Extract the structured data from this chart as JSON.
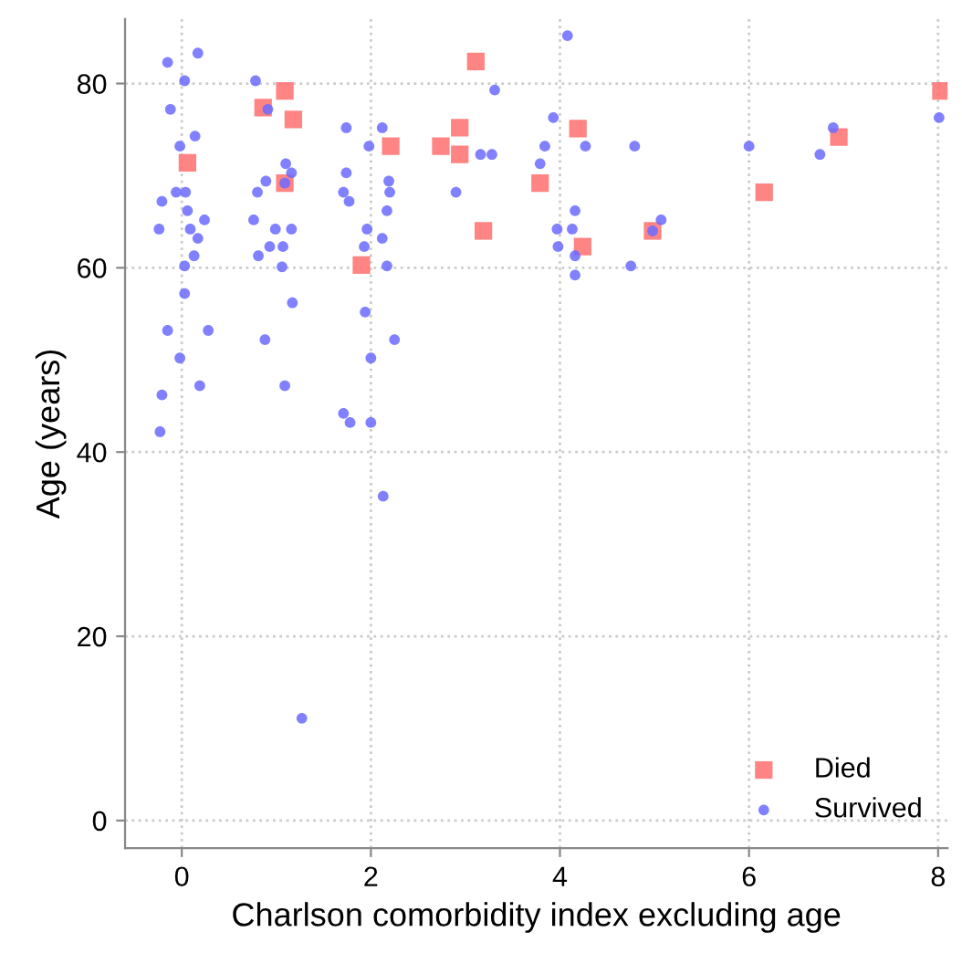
{
  "chart_data": {
    "type": "scatter",
    "xlabel": "Charlson comorbidity index excluding age",
    "ylabel": "Age (years)",
    "xlim": [
      -0.6,
      8.1
    ],
    "ylim": [
      -3,
      87
    ],
    "xticks": [
      0,
      2,
      4,
      6,
      8
    ],
    "yticks": [
      0,
      20,
      40,
      60,
      80
    ],
    "grid": true,
    "legend": "bottom right",
    "series": [
      {
        "name": "Survived",
        "color": "#6b6bff",
        "marker": "circle",
        "x": [
          -0.15,
          0.17,
          0.03,
          0.78,
          0.91,
          3.31,
          -0.12,
          0.14,
          -0.02,
          1.74,
          2.12,
          1.98,
          3.16,
          3.28,
          1.1,
          1.16,
          0.89,
          0.8,
          1.74,
          1.71,
          1.77,
          2.19,
          2.2,
          2.17,
          2.9,
          -0.06,
          0.04,
          -0.21,
          0.06,
          0.24,
          0.76,
          -0.24,
          0.09,
          0.17,
          0.99,
          1.16,
          1.96,
          2.12,
          0.93,
          1.07,
          0.81,
          1.06,
          1.93,
          0.13,
          0.03,
          2.17,
          0.03,
          1.17,
          1.94,
          -0.15,
          0.28,
          0.88,
          2.25,
          -0.02,
          2.0,
          0.19,
          1.09,
          -0.21,
          1.71,
          1.78,
          2.0,
          -0.23,
          2.13,
          1.27,
          4.08,
          3.93,
          3.84,
          4.27,
          4.79,
          6.0,
          3.79,
          4.16,
          3.97,
          4.13,
          3.98,
          4.16,
          4.16,
          4.75,
          5.07,
          4.98,
          6.89,
          6.75,
          8.01,
          1.09
        ],
        "values": [
          82.3,
          83.3,
          80.3,
          80.3,
          77.2,
          79.3,
          77.2,
          74.3,
          73.2,
          75.2,
          75.2,
          73.2,
          72.3,
          72.3,
          71.3,
          70.3,
          69.4,
          68.2,
          70.3,
          68.2,
          67.2,
          69.4,
          68.2,
          66.2,
          68.2,
          68.2,
          68.2,
          67.2,
          66.2,
          65.2,
          65.2,
          64.2,
          64.2,
          63.2,
          64.2,
          64.2,
          64.2,
          63.2,
          62.3,
          62.3,
          61.3,
          60.1,
          62.3,
          61.3,
          60.2,
          60.2,
          57.2,
          56.2,
          55.2,
          53.2,
          53.2,
          52.2,
          52.2,
          50.2,
          50.2,
          47.2,
          47.2,
          46.2,
          44.2,
          43.2,
          43.2,
          42.2,
          35.2,
          11.1,
          85.2,
          76.3,
          73.2,
          73.2,
          73.2,
          73.2,
          71.3,
          66.2,
          64.2,
          64.2,
          62.3,
          61.3,
          59.2,
          60.2,
          65.2,
          64.0,
          75.2,
          72.3,
          76.3,
          69.2
        ]
      },
      {
        "name": "Died",
        "color": "#ff6f6f",
        "marker": "square",
        "x": [
          1.09,
          0.86,
          1.18,
          0.06,
          1.09,
          2.94,
          2.21,
          2.74,
          2.94,
          3.19,
          1.9,
          3.11,
          4.19,
          3.79,
          4.24,
          4.98,
          6.16,
          6.95,
          8.03
        ],
        "values": [
          79.2,
          77.4,
          76.1,
          71.4,
          69.2,
          75.2,
          73.2,
          73.2,
          72.3,
          64.0,
          60.3,
          82.4,
          75.1,
          69.2,
          62.3,
          64.0,
          68.2,
          74.2,
          79.2
        ]
      }
    ]
  }
}
